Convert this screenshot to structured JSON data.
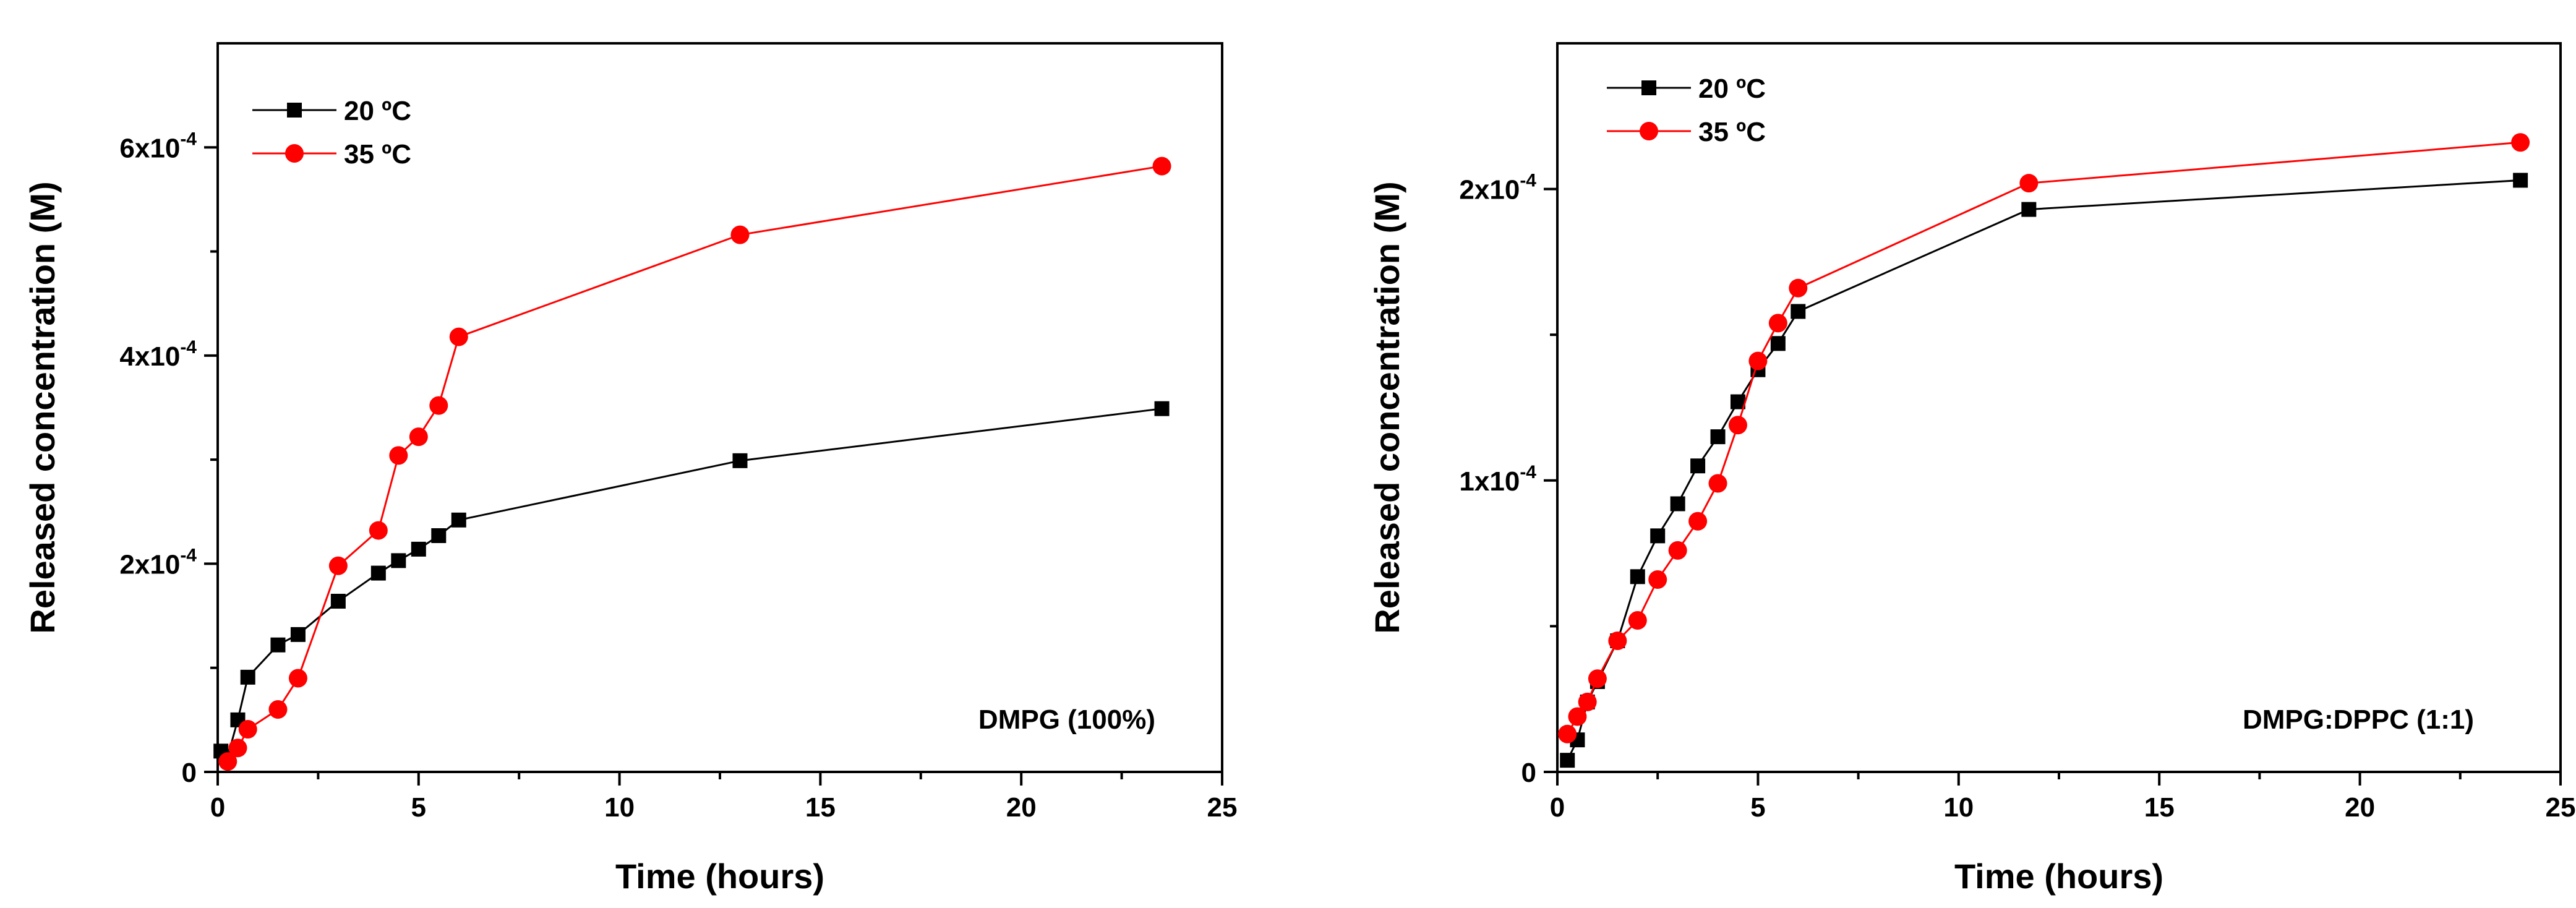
{
  "chart_data": [
    {
      "type": "line",
      "xlabel": "Time (hours)",
      "ylabel": "Released concentration (M)",
      "xlim": [
        0,
        25
      ],
      "ylim": [
        0,
        0.0007
      ],
      "xticks": [
        0,
        5,
        10,
        15,
        20,
        25
      ],
      "xtick_labels": [
        "0",
        "5",
        "10",
        "15",
        "20",
        "25"
      ],
      "yticks": [
        0,
        0.0002,
        0.0004,
        0.0006
      ],
      "ytick_labels": [
        {
          "base": "0",
          "exp": ""
        },
        {
          "base": "2x10",
          "exp": "-4"
        },
        {
          "base": "4x10",
          "exp": "-4"
        },
        {
          "base": "6x10",
          "exp": "-4"
        }
      ],
      "annotation": "DMPG (100%)",
      "legend_position": "top-left",
      "series": [
        {
          "name": "20 ºC",
          "color": "#000000",
          "marker": "square",
          "x": [
            0.08,
            0.25,
            0.5,
            0.75,
            1.5,
            2,
            3,
            4,
            4.5,
            5,
            5.5,
            6,
            13,
            23.5
          ],
          "y": [
            2e-05,
            1.5e-05,
            5e-05,
            9.1e-05,
            0.000122,
            0.000132,
            0.000164,
            0.000191,
            0.000203,
            0.000214,
            0.000227,
            0.000242,
            0.000299,
            0.000349
          ]
        },
        {
          "name": "35 ºC",
          "color": "#ff0000",
          "marker": "circle",
          "x": [
            0.25,
            0.5,
            0.75,
            1.5,
            2,
            3,
            4,
            4.5,
            5,
            5.5,
            6,
            13,
            23.5
          ],
          "y": [
            1e-05,
            2.3e-05,
            4.1e-05,
            6e-05,
            9e-05,
            0.000198,
            0.000232,
            0.000304,
            0.000322,
            0.000352,
            0.000418,
            0.000516,
            0.000582
          ]
        }
      ]
    },
    {
      "type": "line",
      "xlabel": "Time (hours)",
      "ylabel": "Released concentration (M)",
      "xlim": [
        0,
        25
      ],
      "ylim": [
        0,
        0.00025
      ],
      "xticks": [
        0,
        5,
        10,
        15,
        20,
        25
      ],
      "xtick_labels": [
        "0",
        "5",
        "10",
        "15",
        "20",
        "25"
      ],
      "yticks": [
        0,
        0.0001,
        0.0002
      ],
      "ytick_labels": [
        {
          "base": "0",
          "exp": ""
        },
        {
          "base": "1x10",
          "exp": "-4"
        },
        {
          "base": "2x10",
          "exp": "-4"
        }
      ],
      "annotation": "DMPG:DPPC (1:1)",
      "legend_position": "top-left",
      "series": [
        {
          "name": "20 ºC",
          "color": "#000000",
          "marker": "square",
          "x": [
            0.25,
            0.5,
            0.75,
            1,
            1.5,
            2,
            2.5,
            3,
            3.5,
            4,
            4.5,
            5,
            5.5,
            6,
            11.75,
            24
          ],
          "y": [
            4e-06,
            1.1e-05,
            2.4e-05,
            3.1e-05,
            4.5e-05,
            6.7e-05,
            8.1e-05,
            9.2e-05,
            0.000105,
            0.000115,
            0.000127,
            0.000138,
            0.000147,
            0.000158,
            0.000193,
            0.000203
          ]
        },
        {
          "name": "35 ºC",
          "color": "#ff0000",
          "marker": "circle",
          "x": [
            0.25,
            0.5,
            0.75,
            1,
            1.5,
            2,
            2.5,
            3,
            3.5,
            4,
            4.5,
            5,
            5.5,
            6,
            11.75,
            24
          ],
          "y": [
            1.3e-05,
            1.9e-05,
            2.4e-05,
            3.2e-05,
            4.5e-05,
            5.2e-05,
            6.6e-05,
            7.6e-05,
            8.6e-05,
            9.9e-05,
            0.000119,
            0.000141,
            0.000154,
            0.000166,
            0.000202,
            0.000216
          ]
        }
      ]
    }
  ]
}
